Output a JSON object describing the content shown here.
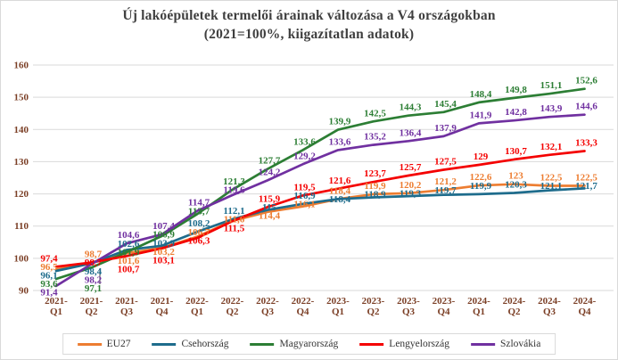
{
  "title": {
    "line1": "Új lakóépületek termelői árainak változása a V4 országokban",
    "line2": "(2021=100%, kiigazítatlan adatok)"
  },
  "chart_data": {
    "type": "line",
    "title": "Új lakóépületek termelői árainak változása a V4 országokban (2021=100%, kiigazítatlan adatok)",
    "categories": [
      "2021-Q1",
      "2021-Q2",
      "2021-Q3",
      "2021-Q4",
      "2022-Q1",
      "2022-Q2",
      "2022-Q3",
      "2022-Q4",
      "2023-Q1",
      "2023-Q2",
      "2023-Q3",
      "2023-Q4",
      "2024-Q1",
      "2024-Q2",
      "2024-Q3",
      "2024-Q4"
    ],
    "series": [
      {
        "name": "EU27",
        "color": "#ED7D31",
        "values": [
          "96,5",
          "98,7",
          "101,6",
          "103,2",
          "106,7",
          "111,6",
          "114,4",
          "116,1",
          "118,4",
          "119,9",
          "120,2",
          "121,2",
          "122,6",
          "123",
          "122,5",
          "122,5"
        ]
      },
      {
        "name": "Csehország",
        "color": "#1E6C8C",
        "values": [
          "96,1",
          "98,4",
          "102,6",
          "103,9",
          "108,2",
          "112,1",
          "115",
          "116,9",
          "118,4",
          "118,9",
          "119,3",
          "119,7",
          "119,9",
          "120,3",
          "121,1",
          "121,7"
        ]
      },
      {
        "name": "Magyarország",
        "color": "#2C7E34",
        "values": [
          "93,6",
          "97,1",
          "101,9",
          "106,9",
          "113,7",
          "121,3",
          "127,7",
          "133,6",
          "139,9",
          "142,5",
          "144,3",
          "145,4",
          "148,4",
          "149,8",
          "151,1",
          "152,6"
        ]
      },
      {
        "name": "Lengyelország",
        "color": "#F40000",
        "values": [
          "97,4",
          "98,7",
          "100,7",
          "103,1",
          "106,3",
          "111,5",
          "115,9",
          "119,5",
          "121,6",
          "123,7",
          "125,7",
          "127,5",
          "129",
          "130,7",
          "132,1",
          "133,3"
        ]
      },
      {
        "name": "Szlovákia",
        "color": "#7030A0",
        "values": [
          "91,4",
          "98,2",
          "104,6",
          "107,4",
          "114,7",
          "119,6",
          "124,2",
          "129,2",
          "133,6",
          "135,2",
          "136,4",
          "137,9",
          "141,9",
          "142,8",
          "143,9",
          "144,6"
        ]
      }
    ],
    "ylim": [
      90,
      160
    ],
    "yticks": [
      90,
      100,
      110,
      120,
      130,
      140,
      150,
      160
    ],
    "grid": "horizontal",
    "legend_position": "bottom",
    "data_labels": true
  },
  "axis": {
    "tick_color": "#7B3F26",
    "grid_color": "#D9D9D9"
  }
}
